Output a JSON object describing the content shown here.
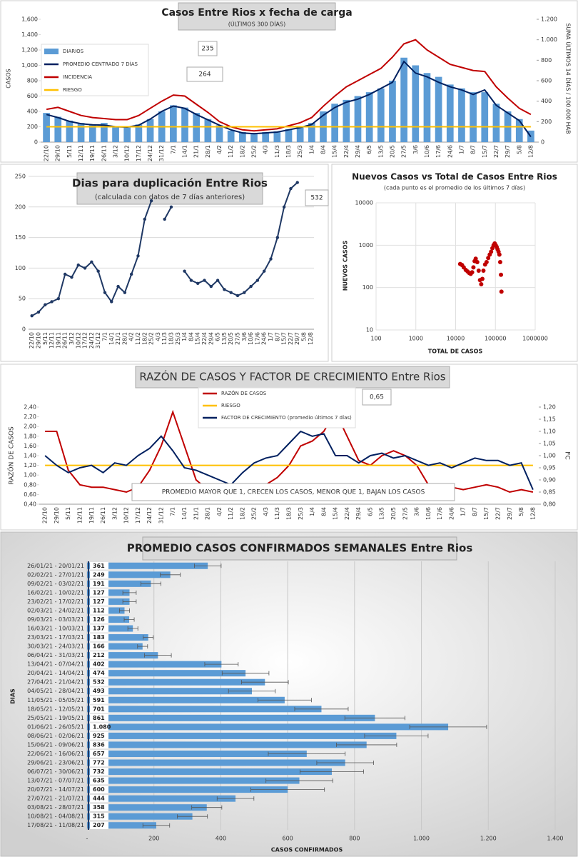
{
  "chart_data": [
    {
      "type": "combo",
      "title": "Casos Entre Rios x fecha de carga",
      "subtitle": "(ÚLTIMOS 300 DÍAS)",
      "y_label": "CASOS",
      "y2_label": "SUMA ÚLTIMOS 14 DÍAS / 100.000 HAB",
      "categories": [
        "22/10",
        "29/10",
        "5/11",
        "12/11",
        "19/11",
        "26/11",
        "3/12",
        "10/12",
        "17/12",
        "24/12",
        "31/12",
        "7/1",
        "14/1",
        "21/1",
        "28/1",
        "4/2",
        "11/2",
        "18/2",
        "25/2",
        "4/3",
        "11/3",
        "18/3",
        "25/3",
        "1/4",
        "8/4",
        "15/4",
        "22/4",
        "29/4",
        "6/5",
        "13/5",
        "20/5",
        "27/5",
        "3/6",
        "10/6",
        "17/6",
        "24/6",
        "1/7",
        "8/7",
        "15/7",
        "22/7",
        "29/7",
        "5/8",
        "12/8"
      ],
      "series": [
        {
          "name": "DIARIOS",
          "type": "bar",
          "color": "#5b9bd5",
          "values": [
            380,
            330,
            280,
            250,
            230,
            250,
            200,
            200,
            230,
            300,
            400,
            480,
            450,
            380,
            300,
            220,
            150,
            130,
            120,
            130,
            140,
            170,
            200,
            250,
            400,
            500,
            550,
            600,
            650,
            700,
            800,
            1100,
            1000,
            900,
            850,
            750,
            700,
            650,
            650,
            500,
            400,
            300,
            150
          ]
        },
        {
          "name": "PROMEDIO CENTRADO 7 DÍAS",
          "type": "line",
          "color": "#002060",
          "values": [
            360,
            320,
            270,
            240,
            225,
            220,
            200,
            195,
            220,
            300,
            400,
            470,
            440,
            360,
            290,
            220,
            160,
            120,
            110,
            120,
            130,
            160,
            190,
            230,
            350,
            450,
            520,
            560,
            620,
            700,
            780,
            1050,
            900,
            850,
            780,
            720,
            680,
            620,
            680,
            480,
            380,
            280,
            70
          ]
        },
        {
          "name": "INCIDENCIA",
          "type": "line",
          "color": "#c00000",
          "axis": "y2",
          "values": [
            320,
            340,
            300,
            260,
            240,
            230,
            220,
            220,
            260,
            330,
            400,
            460,
            450,
            370,
            290,
            200,
            150,
            120,
            110,
            120,
            130,
            160,
            190,
            240,
            350,
            450,
            540,
            600,
            660,
            720,
            830,
            960,
            1000,
            900,
            830,
            760,
            730,
            700,
            690,
            540,
            430,
            330,
            270
          ]
        },
        {
          "name": "RIESGO",
          "type": "line",
          "color": "#ffc000",
          "axis": "y2",
          "values": [
            150,
            150,
            150,
            150,
            150,
            150,
            150,
            150,
            150,
            150,
            150,
            150,
            150,
            150,
            150,
            150,
            150,
            150,
            150,
            150,
            150,
            150,
            150,
            150,
            150,
            150,
            150,
            150,
            150,
            150,
            150,
            150,
            150,
            150,
            150,
            150,
            150,
            150,
            150,
            150,
            150,
            150,
            150
          ]
        }
      ],
      "ylim": [
        0,
        1600
      ],
      "yticks": [
        0,
        200,
        400,
        600,
        800,
        {
          "value": 1000,
          "label": "1,000"
        },
        {
          "value": 1200,
          "label": "1,200"
        },
        {
          "value": 1400,
          "label": "1,400"
        },
        {
          "value": 1600,
          "label": "1,600"
        }
      ],
      "y2lim": [
        0,
        1200
      ],
      "y2ticks": [
        0,
        200,
        400,
        600,
        800,
        {
          "value": 1000,
          "label": "1.000"
        },
        {
          "value": 1200,
          "label": "1.200"
        }
      ],
      "grid": false,
      "annotations": [
        "235",
        "264"
      ]
    },
    {
      "type": "line",
      "title": "Dias para duplicación Entre Rios",
      "subtitle": "(calculada con datos de 7 días anteriores)",
      "categories": [
        "22/10",
        "29/10",
        "5/11",
        "12/11",
        "19/11",
        "26/11",
        "3/12",
        "10/12",
        "17/12",
        "24/12",
        "31/12",
        "7/1",
        "14/1",
        "21/1",
        "28/1",
        "4/2",
        "11/2",
        "18/2",
        "25/2",
        "4/3",
        "11/3",
        "18/3",
        "25/3",
        "1/4",
        "8/4",
        "15/4",
        "22/4",
        "29/4",
        "6/5",
        "13/5",
        "20/5",
        "27/5",
        "3/6",
        "10/6",
        "17/6",
        "24/6",
        "1/7",
        "8/7",
        "15/7",
        "22/7",
        "29/7",
        "5/8",
        "12/8"
      ],
      "series": [
        {
          "type": "line",
          "color": "#1f3864",
          "marker": true,
          "values": [
            22,
            28,
            40,
            45,
            50,
            90,
            85,
            105,
            100,
            110,
            95,
            60,
            45,
            70,
            60,
            90,
            120,
            180,
            210,
            null,
            180,
            200,
            null,
            95,
            80,
            75,
            80,
            70,
            80,
            65,
            60,
            55,
            60,
            70,
            80,
            95,
            115,
            150,
            200,
            230,
            240,
            null,
            null
          ]
        }
      ],
      "ylim": [
        0,
        250
      ],
      "yticks": [
        0,
        50,
        100,
        150,
        200,
        250
      ],
      "grid": true,
      "annotations": [
        "532"
      ]
    },
    {
      "type": "scatter",
      "title": "Nuevos Casos vs Total de Casos Entre Rios",
      "subtitle": "(cada punto es el promedio de los últimos 7 días)",
      "x_label": "TOTAL DE CASOS",
      "y_label": "NUEVOS CASOS",
      "xscale": "log",
      "yscale": "log",
      "color": "#c00000",
      "x": [
        13000,
        14500,
        16000,
        18000,
        20000,
        22000,
        24000,
        26000,
        28000,
        30000,
        32000,
        35000,
        38000,
        41000,
        44000,
        47000,
        50000,
        55000,
        60000,
        66000,
        72000,
        78000,
        84000,
        90000,
        96000,
        102000,
        108000,
        114000,
        120000,
        126000,
        132000,
        138000,
        142000
      ],
      "y": [
        360,
        340,
        300,
        260,
        240,
        220,
        210,
        230,
        300,
        420,
        480,
        400,
        250,
        150,
        120,
        160,
        250,
        350,
        400,
        500,
        600,
        700,
        850,
        1000,
        1100,
        1000,
        900,
        800,
        700,
        600,
        400,
        200,
        80
      ],
      "xlim": [
        100,
        1000000
      ],
      "xticks": [
        100,
        1000,
        10000,
        100000,
        1000000
      ],
      "ylim": [
        10,
        10000
      ],
      "yticks": [
        10,
        100,
        1000,
        10000
      ],
      "grid": true
    },
    {
      "type": "line",
      "title": "RAZÓN DE CASOS Y FACTOR DE CRECIMIENTO Entre Rios",
      "y_label": "RAZÓN DE CASOS",
      "y2_label": "FC",
      "categories": [
        "22/10",
        "29/10",
        "5/11",
        "12/11",
        "19/11",
        "26/11",
        "3/12",
        "10/12",
        "17/12",
        "24/12",
        "31/12",
        "7/1",
        "14/1",
        "21/1",
        "28/1",
        "4/2",
        "11/2",
        "18/2",
        "25/2",
        "4/3",
        "11/3",
        "18/3",
        "25/3",
        "1/4",
        "8/4",
        "15/4",
        "22/4",
        "29/4",
        "6/5",
        "13/5",
        "20/5",
        "27/5",
        "3/6",
        "10/6",
        "17/6",
        "24/6",
        "1/7",
        "8/7",
        "15/7",
        "22/7",
        "29/7",
        "5/8",
        "12/8"
      ],
      "series": [
        {
          "name": "RAZÓN DE CASOS",
          "type": "line",
          "color": "#c00000",
          "values": [
            1.9,
            1.9,
            1.1,
            0.8,
            0.75,
            0.75,
            0.7,
            0.65,
            0.75,
            1.1,
            1.6,
            2.3,
            1.6,
            0.9,
            0.7,
            0.65,
            0.6,
            0.55,
            0.6,
            0.8,
            0.95,
            1.2,
            1.6,
            1.7,
            1.9,
            2.3,
            1.8,
            1.3,
            1.2,
            1.4,
            1.5,
            1.4,
            1.2,
            0.8,
            0.7,
            0.75,
            0.7,
            0.75,
            0.8,
            0.75,
            0.65,
            0.7,
            0.65
          ]
        },
        {
          "name": "RIESGO",
          "type": "line",
          "color": "#ffc000",
          "values": [
            1.2,
            1.2,
            1.2,
            1.2,
            1.2,
            1.2,
            1.2,
            1.2,
            1.2,
            1.2,
            1.2,
            1.2,
            1.2,
            1.2,
            1.2,
            1.2,
            1.2,
            1.2,
            1.2,
            1.2,
            1.2,
            1.2,
            1.2,
            1.2,
            1.2,
            1.2,
            1.2,
            1.2,
            1.2,
            1.2,
            1.2,
            1.2,
            1.2,
            1.2,
            1.2,
            1.2,
            1.2,
            1.2,
            1.2,
            1.2,
            1.2,
            1.2,
            1.2
          ]
        },
        {
          "name": "FACTOR DE CRECIMIENTO (promedio últimos 7 días)",
          "type": "line",
          "color": "#002060",
          "axis": "y2",
          "values": [
            1.0,
            0.96,
            0.93,
            0.95,
            0.96,
            0.93,
            0.97,
            0.96,
            1.0,
            1.03,
            1.08,
            1.02,
            0.95,
            0.94,
            0.92,
            0.9,
            0.88,
            0.93,
            0.97,
            0.99,
            1.0,
            1.05,
            1.1,
            1.08,
            1.09,
            1.0,
            1.0,
            0.97,
            1.0,
            1.01,
            0.99,
            1.0,
            0.98,
            0.96,
            0.97,
            0.95,
            0.97,
            0.99,
            0.98,
            0.98,
            0.96,
            0.97,
            0.86
          ]
        }
      ],
      "ylim": [
        0.4,
        2.4
      ],
      "yticks": [
        {
          "value": 0.4,
          "label": "0,40"
        },
        {
          "value": 0.6,
          "label": "0,60"
        },
        {
          "value": 0.8,
          "label": "0,80"
        },
        {
          "value": 1.0,
          "label": "1,00"
        },
        {
          "value": 1.2,
          "label": "1,20"
        },
        {
          "value": 1.4,
          "label": "1,40"
        },
        {
          "value": 1.6,
          "label": "1,60"
        },
        {
          "value": 1.8,
          "label": "1,80"
        },
        {
          "value": 2.0,
          "label": "2,00"
        },
        {
          "value": 2.2,
          "label": "2,20"
        },
        {
          "value": 2.4,
          "label": "2,40"
        }
      ],
      "y2lim": [
        0.8,
        1.2
      ],
      "y2ticks": [
        {
          "value": 0.8,
          "label": "0,80"
        },
        {
          "value": 0.85,
          "label": "0,85"
        },
        {
          "value": 0.9,
          "label": "0,90"
        },
        {
          "value": 0.95,
          "label": "0,95"
        },
        {
          "value": 1.0,
          "label": "1,00"
        },
        {
          "value": 1.05,
          "label": "1,05"
        },
        {
          "value": 1.1,
          "label": "1,10"
        },
        {
          "value": 1.15,
          "label": "1,15"
        },
        {
          "value": 1.2,
          "label": "1,20"
        }
      ],
      "grid": false,
      "annotations": [
        "0,65",
        "PROMEDIO MAYOR QUE 1, CRECEN LOS CASOS, MENOR QUE 1, BAJAN LOS CASOS"
      ]
    },
    {
      "type": "hbar",
      "title": "PROMEDIO CASOS CONFIRMADOS SEMANALES Entre Rios",
      "x_label": "CASOS CONFIRMADOS",
      "y_label": "DIAS",
      "color": "#5b9bd5",
      "categories": [
        "26/01/21 - 20/01/21",
        "02/02/21 - 27/01/21",
        "09/02/21 - 03/02/21",
        "16/02/21 - 10/02/21",
        "23/02/21 - 17/02/21",
        "02/03/21 - 24/02/21",
        "09/03/21 - 03/03/21",
        "16/03/21 - 10/03/21",
        "23/03/21 - 17/03/21",
        "30/03/21 - 24/03/21",
        "06/04/21 - 31/03/21",
        "13/04/21 - 07/04/21",
        "20/04/21 - 14/04/21",
        "27/04/21 - 21/04/21",
        "04/05/21 - 28/04/21",
        "11/05/21 - 05/05/21",
        "18/05/21 - 12/05/21",
        "25/05/21 - 19/05/21",
        "01/06/21 - 26/05/21",
        "08/06/21 - 02/06/21",
        "15/06/21 - 09/06/21",
        "22/06/21 - 16/06/21",
        "29/06/21 - 23/06/21",
        "06/07/21 - 30/06/21",
        "13/07/21 - 07/07/21",
        "20/07/21 - 14/07/21",
        "27/07/21 - 21/07/21",
        "03/08/21 - 28/07/21",
        "10/08/21 - 04/08/21",
        "17/08/21 - 11/08/21"
      ],
      "values": [
        361,
        249,
        191,
        127,
        127,
        112,
        126,
        137,
        183,
        166,
        212,
        402,
        474,
        532,
        493,
        591,
        701,
        861,
        1080,
        925,
        836,
        657,
        772,
        732,
        635,
        600,
        444,
        358,
        315,
        207
      ],
      "value_labels": [
        "361",
        "249",
        "191",
        "127",
        "127",
        "112",
        "126",
        "137",
        "183",
        "166",
        "212",
        "402",
        "474",
        "532",
        "493",
        "591",
        "701",
        "861",
        "1.080",
        "925",
        "836",
        "657",
        "772",
        "732",
        "635",
        "600",
        "444",
        "358",
        "315",
        "207"
      ],
      "errors": [
        40,
        30,
        30,
        20,
        20,
        15,
        15,
        15,
        15,
        15,
        40,
        50,
        70,
        70,
        70,
        80,
        80,
        90,
        115,
        95,
        90,
        115,
        85,
        95,
        100,
        110,
        55,
        45,
        45,
        40
      ],
      "xlim": [
        0,
        1400
      ],
      "xticks": [
        {
          "value": 0,
          "label": "-"
        },
        200,
        400,
        600,
        800,
        {
          "value": 1000,
          "label": "1.000"
        },
        {
          "value": 1200,
          "label": "1.200"
        },
        {
          "value": 1400,
          "label": "1.400"
        }
      ],
      "grid": true
    }
  ]
}
